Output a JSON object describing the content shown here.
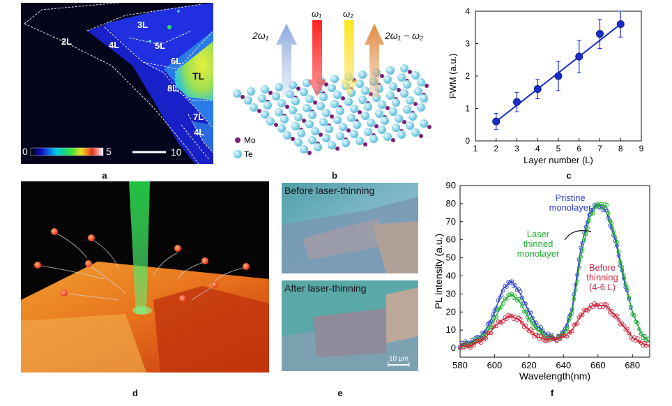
{
  "panel_labels": [
    "a",
    "b",
    "c",
    "d",
    "e",
    "f"
  ],
  "panel_a": {
    "layer_labels": [
      "2L",
      "3L",
      "4L",
      "5L",
      "6L",
      "TL",
      "8L",
      "7L",
      "4L"
    ],
    "colorbar_min": "0",
    "colorbar_max": "5",
    "scalebar_label": "10"
  },
  "panel_b": {
    "beam_labels": [
      "2ω₁",
      "ω₁",
      "ω₂",
      "2ω₁ − ω₂"
    ],
    "legend": [
      "Mo",
      "Te"
    ],
    "colors": {
      "mo": "#7a1f7a",
      "te": "#7fd3ea"
    }
  },
  "panel_e": {
    "before_title": "Before laser-thinning",
    "after_title": "After laser-thinning",
    "scalebar_label": "10 μm"
  },
  "chart_data": [
    {
      "type": "scatter",
      "panel": "c",
      "xlabel": "Layer number (L)",
      "ylabel": "FWM (a.u.)",
      "xlim": [
        1,
        9
      ],
      "ylim": [
        0,
        4
      ],
      "xticks": [
        1,
        2,
        3,
        4,
        5,
        6,
        7,
        8,
        9
      ],
      "yticks": [
        0,
        1,
        2,
        3,
        4
      ],
      "x": [
        2,
        3,
        4,
        5,
        6,
        7,
        8
      ],
      "y": [
        0.6,
        1.2,
        1.6,
        2.0,
        2.6,
        3.3,
        3.6
      ],
      "yerr": [
        0.25,
        0.3,
        0.3,
        0.45,
        0.5,
        0.45,
        0.4
      ],
      "fit": {
        "x": [
          2,
          8
        ],
        "y": [
          0.6,
          3.6
        ]
      },
      "color": "#1a2ecc"
    },
    {
      "type": "line",
      "panel": "f",
      "xlabel": "Wavelength(nm)",
      "ylabel": "PL intensity (a.u.)",
      "xlim": [
        580,
        690
      ],
      "ylim": [
        -5,
        90
      ],
      "xticks": [
        580,
        600,
        620,
        640,
        660,
        680
      ],
      "yticks": [
        0,
        10,
        20,
        30,
        40,
        50,
        60,
        70,
        80,
        90
      ],
      "x": [
        580,
        585,
        590,
        595,
        600,
        605,
        610,
        615,
        620,
        625,
        630,
        635,
        640,
        645,
        650,
        655,
        660,
        665,
        670,
        675,
        680,
        685,
        690
      ],
      "series": [
        {
          "name": "Pristine monolayer",
          "color": "#2a3ed4",
          "values": [
            2,
            3,
            5,
            10,
            20,
            33,
            37,
            30,
            20,
            12,
            8,
            5,
            8,
            22,
            55,
            75,
            80,
            75,
            60,
            38,
            20,
            8,
            3
          ]
        },
        {
          "name": "Laser thinned monolayer",
          "color": "#22b030",
          "values": [
            1,
            2,
            4,
            8,
            16,
            26,
            30,
            25,
            16,
            10,
            6,
            5,
            7,
            20,
            50,
            72,
            80,
            78,
            62,
            40,
            20,
            8,
            3
          ]
        },
        {
          "name": "Before thinning (4-6 L)",
          "color": "#d0243c",
          "values": [
            1,
            1,
            3,
            6,
            12,
            16,
            18,
            15,
            10,
            6,
            5,
            5,
            6,
            10,
            18,
            23,
            24,
            23,
            18,
            12,
            6,
            3,
            1
          ]
        }
      ],
      "annotations": [
        "Pristine monolayer",
        "Laser thinned monolayer",
        "Before thinning (4-6 L)"
      ]
    }
  ]
}
